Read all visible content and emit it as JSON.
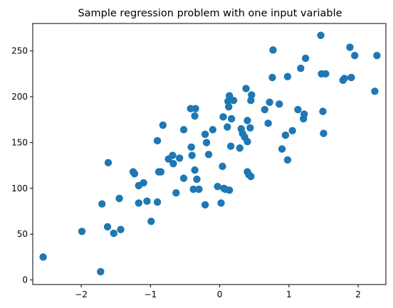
{
  "chart_data": {
    "type": "scatter",
    "title": "Sample regression problem with one input variable",
    "xlabel": "",
    "ylabel": "",
    "xlim": [
      -2.7,
      2.4
    ],
    "ylim": [
      -5,
      280
    ],
    "xticks": [
      -2,
      -1,
      0,
      1,
      2
    ],
    "xtick_labels": [
      "−2",
      "−1",
      "0",
      "1",
      "2"
    ],
    "yticks": [
      0,
      50,
      100,
      150,
      200,
      250
    ],
    "ytick_labels": [
      "0",
      "50",
      "100",
      "150",
      "200",
      "250"
    ],
    "grid": false,
    "legend": "none",
    "color": "#1f77b4",
    "points": [
      [
        -2.55,
        25
      ],
      [
        -1.72,
        9
      ],
      [
        -1.7,
        83
      ],
      [
        -1.99,
        53
      ],
      [
        -1.62,
        58
      ],
      [
        -1.53,
        51
      ],
      [
        -1.43,
        55
      ],
      [
        -1.45,
        89
      ],
      [
        -1.61,
        128
      ],
      [
        -1.25,
        118
      ],
      [
        -1.23,
        116
      ],
      [
        -1.17,
        103
      ],
      [
        -1.17,
        84
      ],
      [
        -1.1,
        106
      ],
      [
        -1.05,
        86
      ],
      [
        -0.99,
        64
      ],
      [
        -0.9,
        85
      ],
      [
        -0.88,
        118
      ],
      [
        -0.85,
        118
      ],
      [
        -0.9,
        152
      ],
      [
        -0.82,
        169
      ],
      [
        -0.74,
        132
      ],
      [
        -0.68,
        136
      ],
      [
        -0.67,
        127
      ],
      [
        -0.63,
        95
      ],
      [
        -0.58,
        133
      ],
      [
        -0.52,
        111
      ],
      [
        -0.52,
        164
      ],
      [
        -0.42,
        187
      ],
      [
        -0.41,
        145
      ],
      [
        -0.38,
        99
      ],
      [
        -0.36,
        120
      ],
      [
        -0.33,
        110
      ],
      [
        -0.3,
        99
      ],
      [
        -0.4,
        136
      ],
      [
        -0.35,
        187
      ],
      [
        -0.36,
        179
      ],
      [
        -0.21,
        82
      ],
      [
        -0.21,
        159
      ],
      [
        -0.19,
        150
      ],
      [
        -0.16,
        137
      ],
      [
        -0.1,
        164
      ],
      [
        -0.03,
        102
      ],
      [
        0.02,
        84
      ],
      [
        0.04,
        124
      ],
      [
        0.06,
        100
      ],
      [
        0.08,
        99
      ],
      [
        0.14,
        98
      ],
      [
        0.05,
        178
      ],
      [
        0.11,
        167
      ],
      [
        0.12,
        195
      ],
      [
        0.13,
        189
      ],
      [
        0.14,
        201
      ],
      [
        0.16,
        146
      ],
      [
        0.17,
        176
      ],
      [
        0.2,
        196
      ],
      [
        0.29,
        144
      ],
      [
        0.31,
        165
      ],
      [
        0.33,
        160
      ],
      [
        0.36,
        156
      ],
      [
        0.38,
        209
      ],
      [
        0.4,
        151
      ],
      [
        0.4,
        174
      ],
      [
        0.4,
        118
      ],
      [
        0.42,
        115
      ],
      [
        0.45,
        113
      ],
      [
        0.44,
        166
      ],
      [
        0.45,
        196
      ],
      [
        0.46,
        202
      ],
      [
        0.65,
        186
      ],
      [
        0.7,
        171
      ],
      [
        0.72,
        194
      ],
      [
        0.76,
        221
      ],
      [
        0.77,
        251
      ],
      [
        0.86,
        192
      ],
      [
        0.9,
        143
      ],
      [
        0.95,
        158
      ],
      [
        0.98,
        131
      ],
      [
        0.98,
        222
      ],
      [
        1.05,
        163
      ],
      [
        1.13,
        186
      ],
      [
        1.17,
        231
      ],
      [
        1.21,
        176
      ],
      [
        1.22,
        181
      ],
      [
        1.24,
        242
      ],
      [
        1.46,
        267
      ],
      [
        1.47,
        225
      ],
      [
        1.5,
        160
      ],
      [
        1.49,
        184
      ],
      [
        1.53,
        225
      ],
      [
        1.78,
        218
      ],
      [
        1.8,
        220
      ],
      [
        1.88,
        254
      ],
      [
        1.9,
        221
      ],
      [
        1.95,
        245
      ],
      [
        2.24,
        206
      ],
      [
        2.27,
        245
      ]
    ]
  }
}
